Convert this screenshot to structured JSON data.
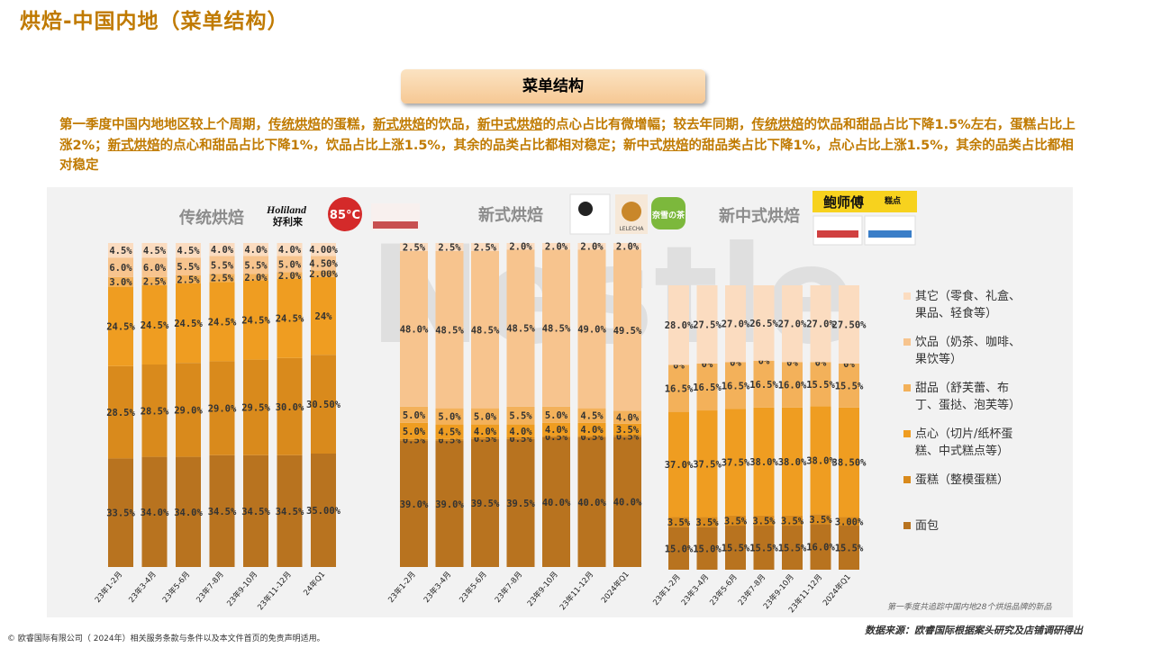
{
  "title": "烘焙-中国内地（菜单结构）",
  "section_label": "菜单结构",
  "summary": {
    "parts": [
      {
        "t": "第一季度中国内地地区较上个周期，",
        "u": false
      },
      {
        "t": "传统烘焙",
        "u": true
      },
      {
        "t": "的蛋糕，",
        "u": false
      },
      {
        "t": "新式烘焙",
        "u": true
      },
      {
        "t": "的饮品，",
        "u": false
      },
      {
        "t": "新中式烘焙",
        "u": true
      },
      {
        "t": "的点心占比有微增幅；较去年同期，",
        "u": false
      },
      {
        "t": "传统烘焙",
        "u": true
      },
      {
        "t": "的饮品和甜品占比下降1.5%左右，蛋糕占比上涨2%；",
        "u": false
      },
      {
        "t": "新式烘焙",
        "u": true
      },
      {
        "t": "的点心和甜品占比下降1%，饮品占比上涨1.5%，其余的品类占比都相对稳定；新中式",
        "u": false
      },
      {
        "t": "烘焙",
        "u": true
      },
      {
        "t": "的甜品类占比下降1%，点心占比上涨1.5%，其余的品类占比都相对稳定",
        "u": false
      }
    ]
  },
  "brands": {
    "holiland_en": "Holiland",
    "holiland_cn": "好利来",
    "b85": "85°C",
    "bao": "鲍师傅",
    "bao_sub": "糕点",
    "lelecha": "LELECHA",
    "naixue": "奈雪の茶"
  },
  "footer_left": "© 欧睿国际有限公司（ 2024年）相关服务条款与条件以及本文件首页的免责声明适用。",
  "footer_right": "数据来源：欧睿国际根据案头研究及店铺调研得出",
  "note": "第一季度共追踪中国内地28个烘焙品牌的新品",
  "watermark": "Nestle",
  "colors": {
    "mianbao": "#b8731f",
    "dangao": "#d98a1c",
    "dianxin": "#ef9d21",
    "tianpin": "#f3b15a",
    "yinpin": "#f7c48e",
    "qita": "#fbdcc0"
  },
  "chart_data": [
    {
      "type": "bar",
      "stacked": true,
      "title": "传统烘焙",
      "categories": [
        "23年1-2月",
        "23年3-4月",
        "23年5-6月",
        "23年7-8月",
        "23年9-10月",
        "23年11-12月",
        "24年Q1"
      ],
      "series": [
        {
          "name": "面包",
          "values": [
            33.5,
            34.0,
            34.0,
            34.5,
            34.5,
            34.5,
            35.0
          ],
          "labels": [
            "33.5%",
            "34.0%",
            "34.0%",
            "34.5%",
            "34.5%",
            "34.5%",
            "35.00%"
          ]
        },
        {
          "name": "蛋糕（整模蛋糕）",
          "values": [
            28.5,
            28.5,
            29.0,
            29.0,
            29.5,
            30.0,
            30.5
          ],
          "labels": [
            "28.5%",
            "28.5%",
            "29.0%",
            "29.0%",
            "29.5%",
            "30.0%",
            "30.50%"
          ]
        },
        {
          "name": "点心（切片/纸杯蛋糕、中式糕点等）",
          "values": [
            24.5,
            24.5,
            24.5,
            24.5,
            24.5,
            24.5,
            24
          ],
          "labels": [
            "24.5%",
            "24.5%",
            "24.5%",
            "24.5%",
            "24.5%",
            "24.5%",
            "24%"
          ]
        },
        {
          "name": "甜品（舒芙蕾、布丁、蛋挞、泡芙等）",
          "values": [
            3.0,
            2.5,
            2.5,
            2.5,
            2.0,
            2.0,
            2.0
          ],
          "labels": [
            "3.0%",
            "2.5%",
            "2.5%",
            "2.5%",
            "2.0%",
            "2.0%",
            "2.00%"
          ]
        },
        {
          "name": "饮品（奶茶、咖啡、果饮等）",
          "values": [
            6.0,
            6.0,
            5.5,
            5.5,
            5.5,
            5.0,
            4.5
          ],
          "labels": [
            "6.0%",
            "6.0%",
            "5.5%",
            "5.5%",
            "5.5%",
            "5.0%",
            "4.50%"
          ]
        },
        {
          "name": "其它（零食、礼盒、果品、轻食等）",
          "values": [
            4.5,
            4.5,
            4.5,
            4.0,
            4.0,
            4.0,
            4.0
          ],
          "labels": [
            "4.5%",
            "4.5%",
            "4.5%",
            "4.0%",
            "4.0%",
            "4.0%",
            "4.00%"
          ]
        }
      ]
    },
    {
      "type": "bar",
      "stacked": true,
      "title": "新式烘焙",
      "categories": [
        "23年1-2月",
        "23年3-4月",
        "23年5-6月",
        "23年7-8月",
        "23年9-10月",
        "23年11-12月",
        "2024年Q1"
      ],
      "series": [
        {
          "name": "面包",
          "values": [
            39.0,
            39.0,
            39.5,
            39.5,
            40.0,
            40.0,
            40.0
          ],
          "labels": [
            "39.0%",
            "39.0%",
            "39.5%",
            "39.5%",
            "40.0%",
            "40.0%",
            "40.0%"
          ]
        },
        {
          "name": "蛋糕（整模蛋糕）",
          "values": [
            0.5,
            0.5,
            0.5,
            0.5,
            0.5,
            0.5,
            0.5
          ],
          "labels": [
            "0.5%",
            "0.5%",
            "0.5%",
            "0.5%",
            "0.5%",
            "0.5%",
            "0.5%"
          ]
        },
        {
          "name": "点心（切片/纸杯蛋糕、中式糕点等）",
          "values": [
            5.0,
            4.5,
            4.0,
            4.0,
            4.0,
            4.0,
            3.5
          ],
          "labels": [
            "5.0%",
            "4.5%",
            "4.0%",
            "4.0%",
            "4.0%",
            "4.0%",
            "3.5%"
          ]
        },
        {
          "name": "甜品（舒芙蕾、布丁、蛋挞、泡芙等）",
          "values": [
            5.0,
            5.0,
            5.0,
            5.5,
            5.0,
            4.5,
            4.0
          ],
          "labels": [
            "5.0%",
            "5.0%",
            "5.0%",
            "5.5%",
            "5.0%",
            "4.5%",
            "4.0%"
          ]
        },
        {
          "name": "饮品（奶茶、咖啡、果饮等）",
          "values": [
            48.0,
            48.5,
            48.5,
            48.5,
            48.5,
            49.0,
            49.5
          ],
          "labels": [
            "48.0%",
            "48.5%",
            "48.5%",
            "48.5%",
            "48.5%",
            "49.0%",
            "49.5%"
          ]
        },
        {
          "name": "其它（零食、礼盒、果品、轻食等）",
          "values": [
            2.5,
            2.5,
            2.5,
            2.0,
            2.0,
            2.0,
            2.0
          ],
          "labels": [
            "2.5%",
            "2.5%",
            "2.5%",
            "2.0%",
            "2.0%",
            "2.0%",
            "2.0%"
          ]
        }
      ]
    },
    {
      "type": "bar",
      "stacked": true,
      "title": "新中式烘焙",
      "categories": [
        "23年1-2月",
        "23年3-4月",
        "23年5-6月",
        "23年7-8月",
        "23年9-10月",
        "23年11-12月",
        "2024年Q1"
      ],
      "series": [
        {
          "name": "面包",
          "values": [
            15.0,
            15.0,
            15.5,
            15.5,
            15.5,
            16.0,
            15.5
          ],
          "labels": [
            "15.0%",
            "15.0%",
            "15.5%",
            "15.5%",
            "15.5%",
            "16.0%",
            "15.5%"
          ]
        },
        {
          "name": "蛋糕（整模蛋糕）",
          "values": [
            3.5,
            3.5,
            3.5,
            3.5,
            3.5,
            3.5,
            3.0
          ],
          "labels": [
            "3.5%",
            "3.5%",
            "3.5%",
            "3.5%",
            "3.5%",
            "3.5%",
            "3.00%"
          ]
        },
        {
          "name": "点心（切片/纸杯蛋糕、中式糕点等）",
          "values": [
            37.0,
            37.5,
            37.5,
            38.0,
            38.0,
            38.0,
            38.5
          ],
          "labels": [
            "37.0%",
            "37.5%",
            "37.5%",
            "38.0%",
            "38.0%",
            "38.0%",
            "38.50%"
          ]
        },
        {
          "name": "甜品（舒芙蕾、布丁、蛋挞、泡芙等）",
          "values": [
            16.5,
            16.5,
            16.5,
            16.5,
            16.0,
            15.5,
            15.5
          ],
          "labels": [
            "16.5%",
            "16.5%",
            "16.5%",
            "16.5%",
            "16.0%",
            "15.5%",
            "15.5%"
          ]
        },
        {
          "name": "饮品（奶茶、咖啡、果饮等）",
          "values": [
            0,
            0,
            0,
            0,
            0,
            0,
            0
          ],
          "labels": [
            "0%",
            "0%",
            "0%",
            "0%",
            "0%",
            "0%",
            "0%"
          ]
        },
        {
          "name": "其它（零食、礼盒、果品、轻食等）",
          "values": [
            28.0,
            27.5,
            27.0,
            26.5,
            27.0,
            27.0,
            27.5
          ],
          "labels": [
            "28.0%",
            "27.5%",
            "27.0%",
            "26.5%",
            "27.0%",
            "27.0%",
            "27.50%"
          ]
        }
      ]
    }
  ],
  "legend": [
    {
      "line1": "其它（零食、礼盒、",
      "line2": "果品、轻食等）",
      "color": "#fbdcc0"
    },
    {
      "line1": "饮品（奶茶、咖啡、",
      "line2": "果饮等）",
      "color": "#f7c48e"
    },
    {
      "line1": "甜品（舒芙蕾、布",
      "line2": "丁、蛋挞、泡芙等）",
      "color": "#f3b15a"
    },
    {
      "line1": "点心（切片/纸杯蛋",
      "line2": "糕、中式糕点等）",
      "color": "#ef9d21"
    },
    {
      "line1": "蛋糕（整模蛋糕）",
      "line2": "",
      "color": "#d98a1c"
    },
    {
      "line1": "面包",
      "line2": "",
      "color": "#b8731f"
    }
  ]
}
